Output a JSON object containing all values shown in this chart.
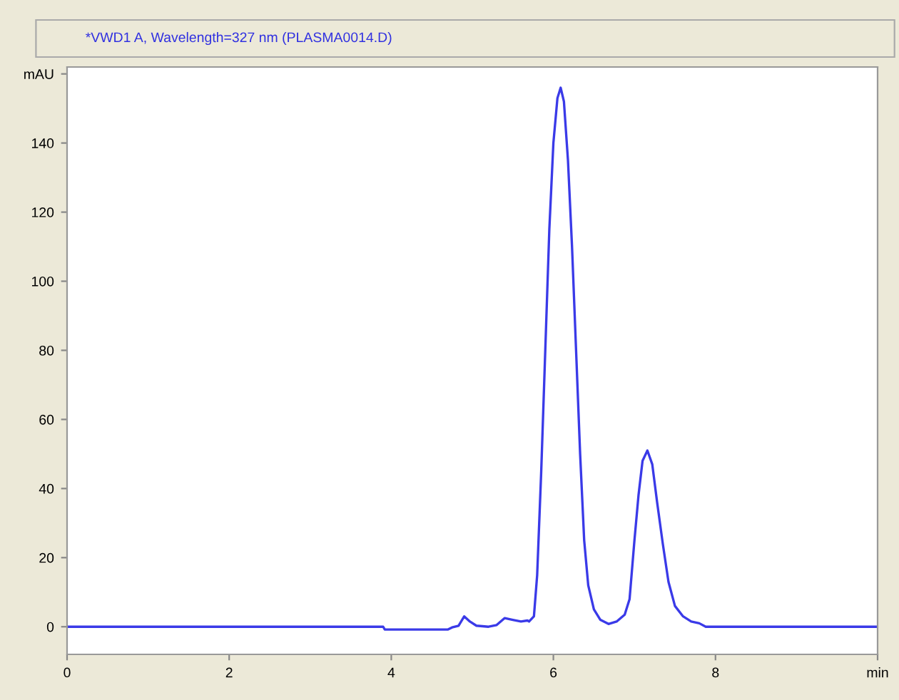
{
  "chart_data": {
    "type": "line",
    "title": "*VWD1 A, Wavelength=327 nm (PLASMA0014.D)",
    "series": [
      {
        "color": "#3a3ae8",
        "x": [
          0,
          3.9,
          3.92,
          4.7,
          4.75,
          4.83,
          4.9,
          4.97,
          5.05,
          5.2,
          5.3,
          5.4,
          5.5,
          5.6,
          5.68,
          5.7,
          5.76,
          5.8,
          5.85,
          5.9,
          5.95,
          6.0,
          6.05,
          6.09,
          6.13,
          6.18,
          6.23,
          6.28,
          6.33,
          6.38,
          6.43,
          6.5,
          6.58,
          6.68,
          6.78,
          6.88,
          6.94,
          7.0,
          7.05,
          7.1,
          7.16,
          7.22,
          7.28,
          7.35,
          7.42,
          7.5,
          7.6,
          7.7,
          7.8,
          7.88,
          10
        ],
        "values": [
          0,
          0,
          -0.8,
          -0.8,
          -0.2,
          0.3,
          3,
          1.5,
          0.3,
          0,
          0.5,
          2.5,
          2,
          1.5,
          1.8,
          1.5,
          3,
          15,
          45,
          80,
          115,
          140,
          153,
          156,
          152,
          135,
          110,
          80,
          50,
          25,
          12,
          5,
          2,
          0.8,
          1.5,
          3.5,
          8,
          25,
          38,
          48,
          51,
          47,
          36,
          24,
          13,
          6,
          3,
          1.5,
          1,
          0,
          0
        ]
      }
    ],
    "xlim": [
      0,
      10
    ],
    "xticks": [
      0,
      2,
      4,
      6,
      8,
      {
        "value": 10,
        "label": "min"
      }
    ],
    "ylim": [
      -8,
      162
    ],
    "yticks": [
      0,
      20,
      40,
      60,
      80,
      100,
      120,
      140,
      {
        "value": 160,
        "label": "mAU"
      }
    ],
    "grid": false,
    "legend": false,
    "marker": "none",
    "line_style": "solid"
  }
}
